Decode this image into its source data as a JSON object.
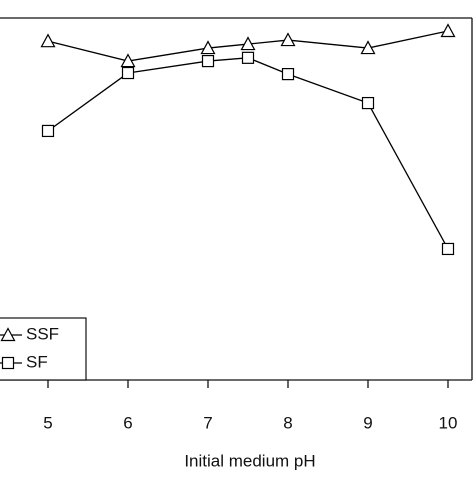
{
  "chart_data": {
    "type": "line",
    "x_label": "Initial medium pH",
    "x": [
      5,
      6,
      7,
      7.5,
      8,
      9,
      10
    ],
    "series": [
      {
        "name": "SSF",
        "color": "#000000",
        "marker": "triangle",
        "values": [
          93.6,
          88.1,
          91.7,
          92.8,
          93.9,
          91.7,
          96.4
        ]
      },
      {
        "name": "SF",
        "color": "#000000",
        "marker": "square",
        "values": [
          68.8,
          84.8,
          88.1,
          89.0,
          84.5,
          76.5,
          36.2
        ]
      }
    ],
    "xlim": [
      4.4,
      10.3
    ],
    "xticks": [
      5,
      6,
      7,
      8,
      9,
      10
    ],
    "ylim": [
      0,
      100
    ],
    "legend": "lower left"
  }
}
